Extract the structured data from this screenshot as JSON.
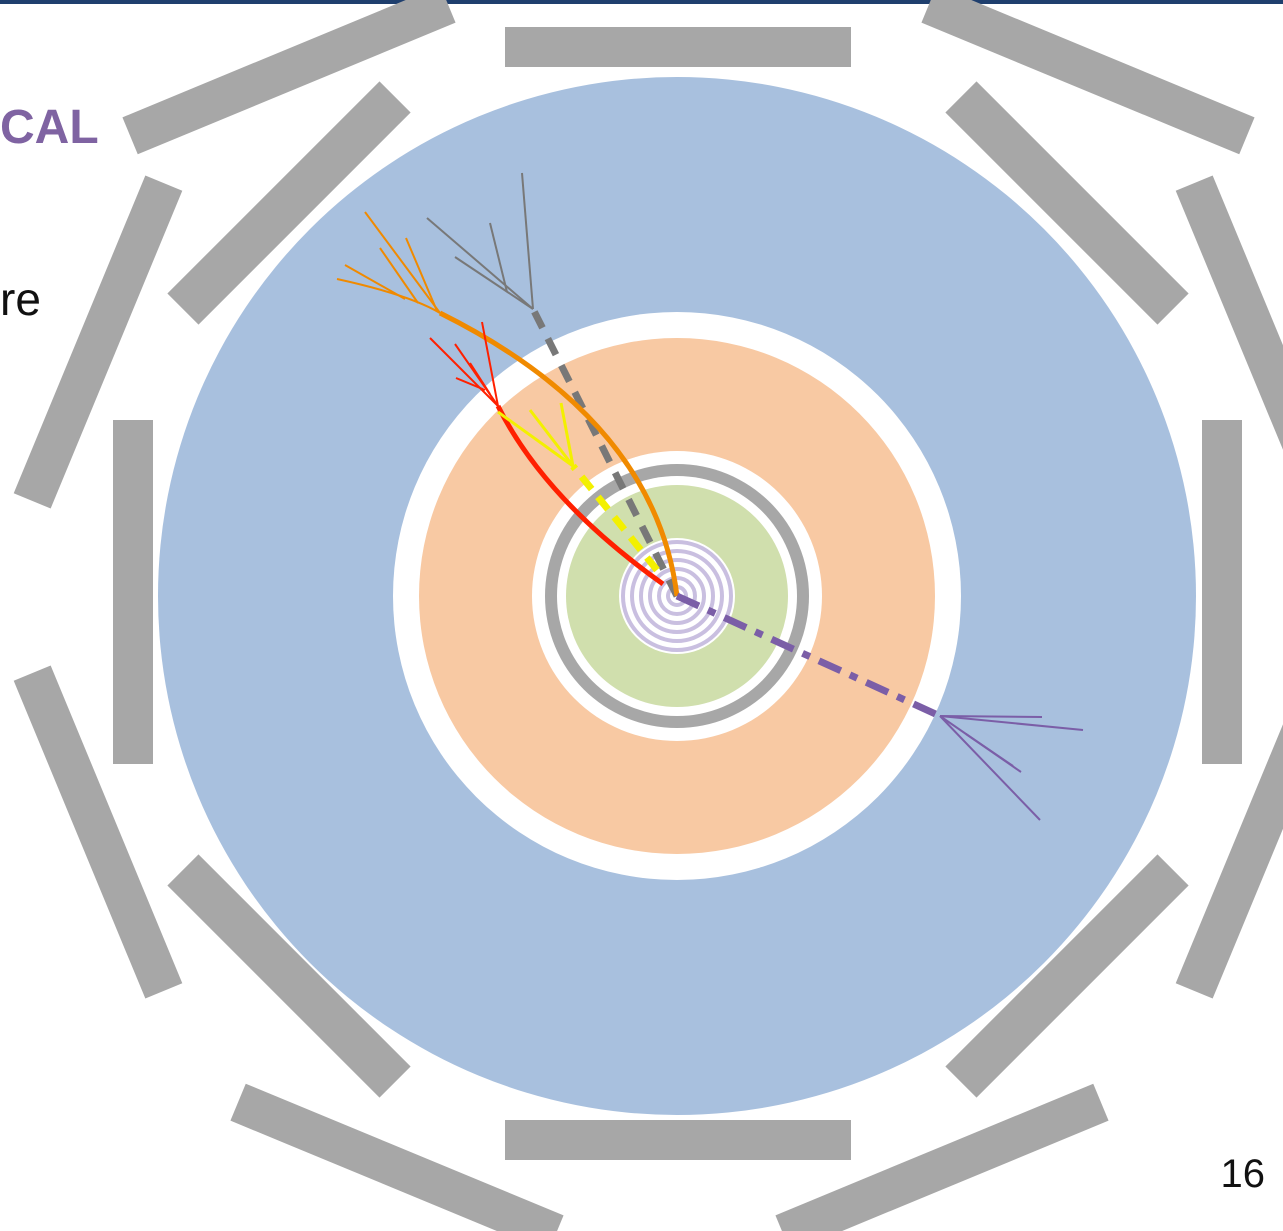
{
  "slide": {
    "title_fragment": "CAL",
    "body_fragment": "re",
    "page_number": "16"
  },
  "detector": {
    "layers": [
      {
        "name": "inner-tracker",
        "color": "#c9bfe0"
      },
      {
        "name": "tracking-volume",
        "color": "#d0dfad"
      },
      {
        "name": "solenoid",
        "color": "#a7a7a7"
      },
      {
        "name": "electromagnetic-calorimeter",
        "color": "#f8c9a3"
      },
      {
        "name": "hadronic-calorimeter",
        "color": "#a8c0de"
      },
      {
        "name": "muon-system",
        "color": "#a7a7a7"
      }
    ],
    "particle_colors": {
      "orange": "#f08a00",
      "red": "#ff2000",
      "yellow": "#f3f000",
      "gray": "#787878",
      "purple": "#7b5ea7"
    }
  }
}
